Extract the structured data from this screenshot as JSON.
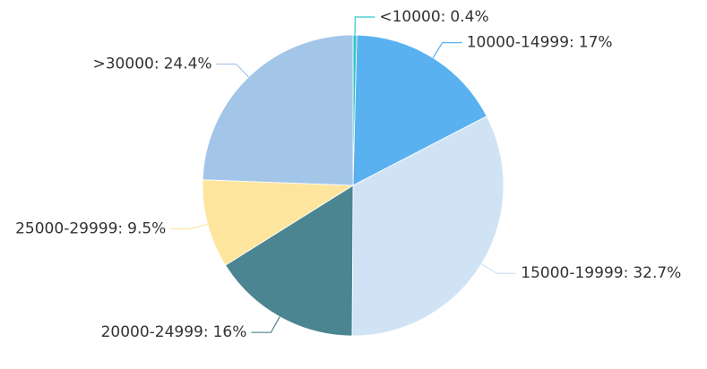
{
  "chart_data": {
    "type": "pie",
    "categories": [
      "<10000:",
      "10000-14999:",
      "15000-19999:",
      "20000-24999:",
      "25000-29999:",
      ">30000:"
    ],
    "values": [
      0.4,
      17,
      32.7,
      16,
      9.5,
      24.4
    ],
    "value_labels": [
      "0.4%",
      "17%",
      "32.7%",
      "16%",
      "9.5%",
      "24.4%"
    ],
    "colors": [
      "#2ec7c9",
      "#5ab1ef",
      "#d0e3f5",
      "#4a8591",
      "#fde59e",
      "#a3c6e8"
    ]
  }
}
